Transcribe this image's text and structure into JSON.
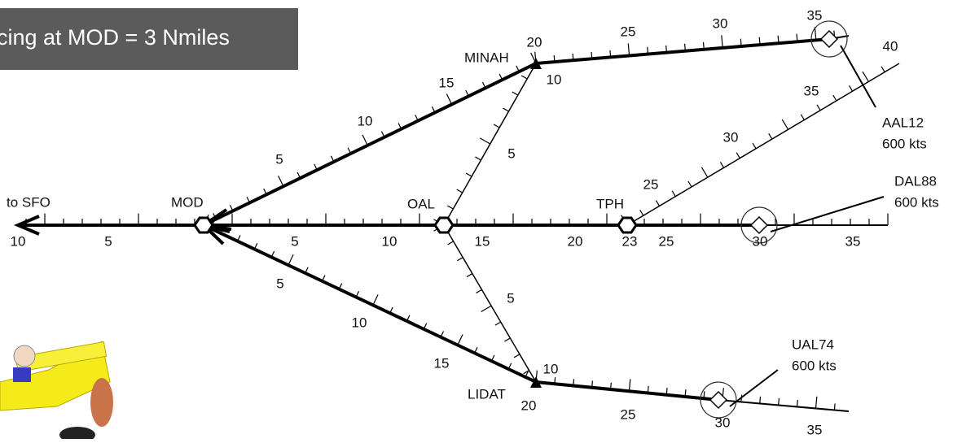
{
  "banner": "cing at MOD = 3 Nmiles",
  "waypoints": {
    "sfo": "to SFO",
    "mod": "MOD",
    "oal": "OAL",
    "tph": "TPH",
    "minah": "MINAH",
    "lidat": "LIDAT"
  },
  "aircraft": [
    {
      "callsign": "AAL12",
      "speed": "600 kts"
    },
    {
      "callsign": "DAL88",
      "speed": "600 kts"
    },
    {
      "callsign": "UAL74",
      "speed": "600 kts"
    }
  ],
  "distance_labels": {
    "main": [
      "10",
      "5",
      "5",
      "10",
      "15",
      "20",
      "23",
      "25",
      "30",
      "35"
    ],
    "mod_minah": [
      "5",
      "10",
      "15",
      "20"
    ],
    "minah_aal12": [
      "25",
      "30",
      "35"
    ],
    "tph_northeast": [
      "25",
      "30",
      "35",
      "40"
    ],
    "oal_minah": [
      "5",
      "10"
    ],
    "mod_lidat": [
      "5",
      "10",
      "15",
      "20"
    ],
    "lidat_ual74": [
      "25",
      "30",
      "35"
    ],
    "oal_lidat": [
      "5",
      "10"
    ]
  }
}
